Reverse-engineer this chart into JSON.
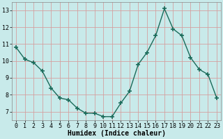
{
  "x": [
    0,
    1,
    2,
    3,
    4,
    5,
    6,
    7,
    8,
    9,
    10,
    11,
    12,
    13,
    14,
    15,
    16,
    17,
    18,
    19,
    20,
    21,
    22,
    23
  ],
  "y": [
    10.8,
    10.1,
    9.9,
    9.4,
    8.4,
    7.8,
    7.7,
    7.2,
    6.9,
    6.9,
    6.7,
    6.7,
    7.5,
    8.2,
    9.8,
    10.5,
    11.5,
    13.1,
    11.9,
    11.5,
    10.2,
    9.5,
    9.2,
    7.8
  ],
  "line_color": "#1a6b5a",
  "marker": "+",
  "markersize": 4,
  "markeredgewidth": 1.2,
  "linewidth": 1.0,
  "bg_color": "#c8eaea",
  "grid_color": "#d4a0a0",
  "xlabel": "Humidex (Indice chaleur)",
  "xlim": [
    -0.5,
    23.5
  ],
  "ylim": [
    6.5,
    13.5
  ],
  "yticks": [
    7,
    8,
    9,
    10,
    11,
    12,
    13
  ],
  "xtick_labels": [
    "0",
    "1",
    "2",
    "3",
    "4",
    "5",
    "6",
    "7",
    "8",
    "9",
    "10",
    "11",
    "12",
    "13",
    "14",
    "15",
    "16",
    "17",
    "18",
    "19",
    "20",
    "21",
    "22",
    "23"
  ],
  "xlabel_fontsize": 7,
  "tick_fontsize": 6
}
